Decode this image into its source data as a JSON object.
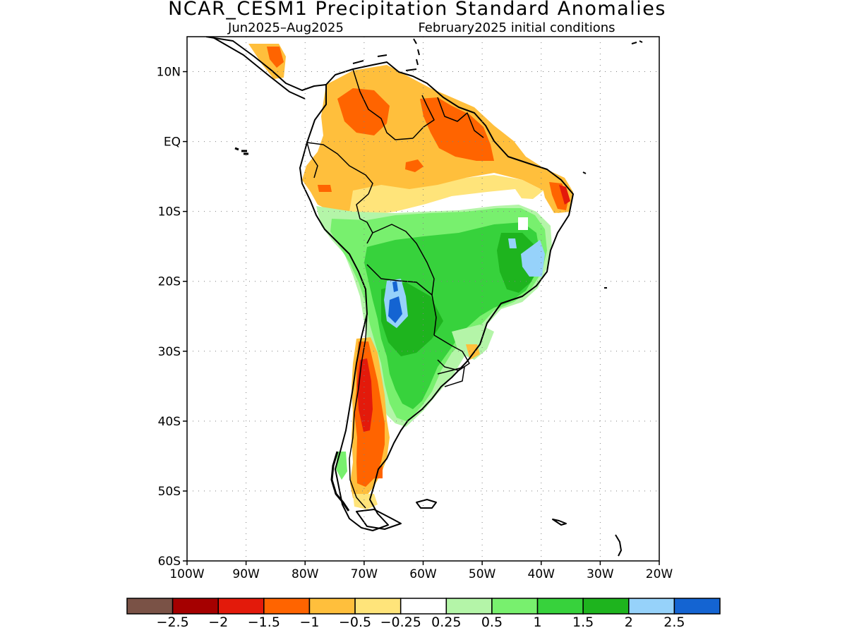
{
  "title": "NCAR_CESM1 Precipitation Standard Anomalies",
  "subtitle_left": "Jun2025–Aug2025",
  "subtitle_right": "February2025 initial conditions",
  "map": {
    "lon_range": [
      -100,
      -20
    ],
    "lat_range": [
      -60,
      15
    ],
    "lat_ticks": [
      {
        "value": 10,
        "label": "10N"
      },
      {
        "value": 0,
        "label": "EQ"
      },
      {
        "value": -10,
        "label": "10S"
      },
      {
        "value": -20,
        "label": "20S"
      },
      {
        "value": -30,
        "label": "30S"
      },
      {
        "value": -40,
        "label": "40S"
      },
      {
        "value": -50,
        "label": "50S"
      },
      {
        "value": -60,
        "label": "60S"
      }
    ],
    "lon_ticks": [
      {
        "value": -100,
        "label": "100W"
      },
      {
        "value": -90,
        "label": "90W"
      },
      {
        "value": -80,
        "label": "80W"
      },
      {
        "value": -70,
        "label": "70W"
      },
      {
        "value": -60,
        "label": "60W"
      },
      {
        "value": -50,
        "label": "50W"
      },
      {
        "value": -40,
        "label": "40W"
      },
      {
        "value": -30,
        "label": "30W"
      },
      {
        "value": -20,
        "label": "20W"
      }
    ],
    "grid": "dotted"
  },
  "colorbar": {
    "colors": [
      "#7a5246",
      "#a50000",
      "#e31a0b",
      "#ff6400",
      "#ffbf3c",
      "#ffe47a",
      "#ffffff",
      "#b4f5a8",
      "#78f06e",
      "#37d23c",
      "#1eb41e",
      "#96d2fa",
      "#1464d2"
    ],
    "labels": [
      "−2.5",
      "−2",
      "−1.5",
      "−1",
      "−0.5",
      "−0.25",
      "0.25",
      "0.5",
      "1",
      "1.5",
      "2",
      "2.5"
    ]
  },
  "colors": {
    "dry_strong": "#e31a0b",
    "dry_moderate": "#ff6400",
    "dry_weak": "#ffbf3c",
    "dry_slight": "#ffe47a",
    "wet_slight": "#b4f5a8",
    "wet_weak": "#78f06e",
    "wet_moderate": "#37d23c",
    "wet_strong": "#1eb41e",
    "wet_very": "#96d2fa",
    "wet_extreme": "#1464d2"
  }
}
